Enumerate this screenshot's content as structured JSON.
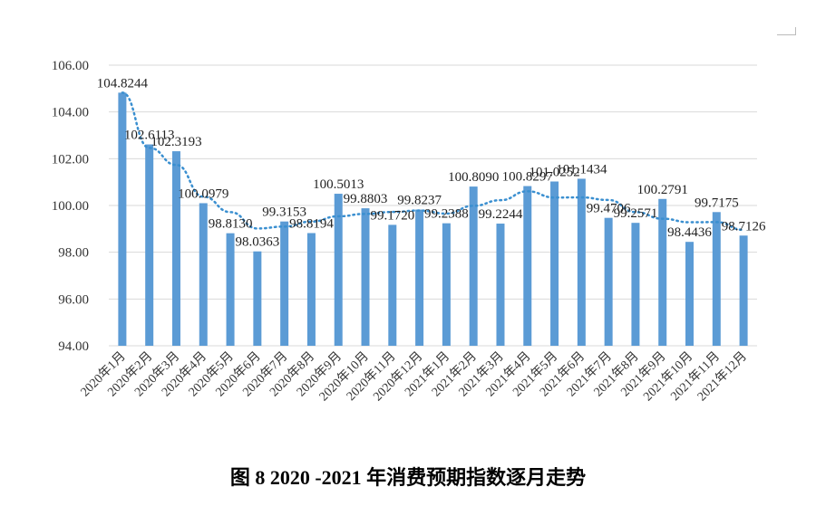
{
  "caption": "图 8    2020 -2021 年消费预期指数逐月走势",
  "chart_data": {
    "type": "bar",
    "categories": [
      "2020年1月",
      "2020年2月",
      "2020年3月",
      "2020年4月",
      "2020年5月",
      "2020年6月",
      "2020年7月",
      "2020年8月",
      "2020年9月",
      "2020年10月",
      "2020年11月",
      "2020年12月",
      "2021年1月",
      "2021年2月",
      "2021年3月",
      "2021年4月",
      "2021年5月",
      "2021年6月",
      "2021年7月",
      "2021年8月",
      "2021年9月",
      "2021年10月",
      "2021年11月",
      "2021年12月"
    ],
    "values": [
      104.8244,
      102.6113,
      102.3193,
      100.0979,
      98.813,
      98.0363,
      99.3153,
      98.8194,
      100.5013,
      99.8803,
      99.172,
      99.8237,
      99.2388,
      100.809,
      99.2244,
      100.8297,
      101.0252,
      101.1434,
      99.4706,
      99.2571,
      100.2791,
      98.4436,
      99.7175,
      98.7126
    ],
    "value_labels": [
      "104.8244",
      "102.6113",
      "102.3193",
      "100.0979",
      "98.8130",
      "98.0363",
      "99.3153",
      "98.8194",
      "100.5013",
      "99.8803",
      "99.1720",
      "99.8237",
      "99.2388",
      "100.8090",
      "99.2244",
      "100.8297",
      "101.0252",
      "101.1434",
      "99.4706",
      "99.2571",
      "100.2791",
      "98.4436",
      "99.7175",
      "98.7126"
    ],
    "trendline": {
      "style": "dotted",
      "kind": "polynomial"
    },
    "ylim": [
      94,
      106
    ],
    "yticks": [
      "94.00",
      "96.00",
      "98.00",
      "100.00",
      "102.00",
      "104.00",
      "106.00"
    ],
    "ytick_values": [
      94,
      96,
      98,
      100,
      102,
      104,
      106
    ],
    "grid": true,
    "colors": {
      "bar": "#5b9bd5",
      "trend": "#3a8fd0",
      "grid": "#d9d9d9"
    }
  }
}
